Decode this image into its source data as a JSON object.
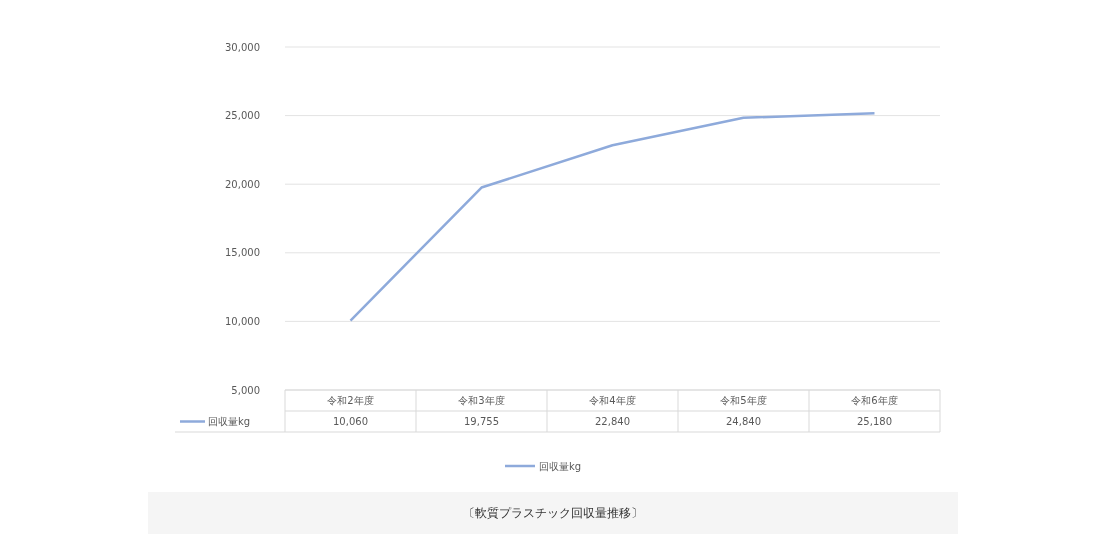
{
  "chart_data": {
    "type": "line",
    "categories": [
      "令和2年度",
      "令和3年度",
      "令和4年度",
      "令和5年度",
      "令和6年度"
    ],
    "series": [
      {
        "name": "回収量kg",
        "color": "#8eaadb",
        "values": [
          10060,
          19755,
          22840,
          24840,
          25180
        ],
        "value_labels": [
          "10,060",
          "19,755",
          "22,840",
          "24,840",
          "25,180"
        ]
      }
    ],
    "ylim": [
      5000,
      30000
    ],
    "yticks": [
      {
        "value": 5000,
        "label": "5,000"
      },
      {
        "value": 10000,
        "label": "10,000"
      },
      {
        "value": 15000,
        "label": "15,000"
      },
      {
        "value": 20000,
        "label": "20,000"
      },
      {
        "value": 25000,
        "label": "25,000"
      },
      {
        "value": 30000,
        "label": "30,000"
      }
    ],
    "grid": "y",
    "legend": "bottom",
    "marker": "none",
    "line_style": "solid",
    "annotations": [
      "〔軟質プラスチック回収量推移〕"
    ]
  }
}
